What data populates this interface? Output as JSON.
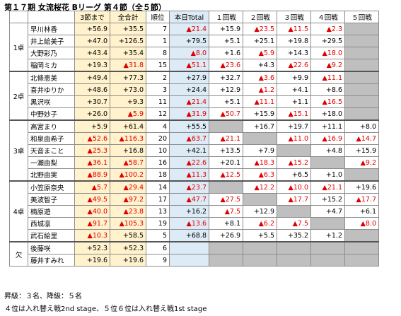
{
  "title": "第１７期 女流桜花 Bリーグ 第４節（全５節）",
  "headers": [
    "",
    "",
    "3節まで",
    "全合計",
    "順位",
    "本日Total",
    "１回戦",
    "２回戦",
    "３回戦",
    "４回戦",
    "５回戦"
  ],
  "groups": [
    {
      "label": "1卓",
      "rows": [
        {
          "name": "早川林香",
          "prev": "+56.9",
          "total": "+35.5",
          "rank": "7",
          "today": "▲21.4",
          "g": [
            "+15.9",
            "▲23.5",
            "▲11.5",
            "▲2.3",
            null
          ]
        },
        {
          "name": "井上絵美子",
          "prev": "+47.0",
          "total": "+126.5",
          "rank": "1",
          "today": "+79.5",
          "g": [
            "+5.1",
            "+25.1",
            "+19.8",
            "+29.5",
            null
          ]
        },
        {
          "name": "大野彩乃",
          "prev": "+43.4",
          "total": "+35.4",
          "rank": "8",
          "today": "▲8.0",
          "g": [
            "+1.6",
            "▲5.9",
            "+14.3",
            "▲18.0",
            null
          ]
        },
        {
          "name": "稲岡ミカ",
          "prev": "+19.3",
          "total": "▲31.8",
          "rank": "15",
          "today": "▲51.1",
          "g": [
            "▲23.6",
            "+4.3",
            "▲22.6",
            "▲9.2",
            null
          ]
        }
      ]
    },
    {
      "label": "2卓",
      "rows": [
        {
          "name": "北條恵美",
          "prev": "+49.4",
          "total": "+77.3",
          "rank": "2",
          "today": "+27.9",
          "g": [
            "+32.7",
            "▲3.6",
            "+9.9",
            "▲11.1",
            null
          ]
        },
        {
          "name": "喜井ゆりか",
          "prev": "+48.6",
          "total": "+73.0",
          "rank": "3",
          "today": "+24.4",
          "g": [
            "+12.9",
            "▲1.2",
            "+4.1",
            "+8.6",
            null
          ]
        },
        {
          "name": "黒沢咲",
          "prev": "+30.7",
          "total": "+9.3",
          "rank": "11",
          "today": "▲21.4",
          "g": [
            "+5.1",
            "▲11.1",
            "+1.1",
            "▲16.5",
            null
          ]
        },
        {
          "name": "中野妙子",
          "prev": "+26.0",
          "total": "▲5.9",
          "rank": "12",
          "today": "▲31.9",
          "g": [
            "▲50.7",
            "+15.9",
            "▲15.1",
            "+18.0",
            null
          ]
        }
      ]
    },
    {
      "label": "3卓",
      "rows": [
        {
          "name": "高宮まり",
          "prev": "+5.9",
          "total": "+61.4",
          "rank": "4",
          "today": "+55.5",
          "g": [
            null,
            "+16.7",
            "+19.7",
            "+11.1",
            "+8.0"
          ]
        },
        {
          "name": "和泉由希子",
          "prev": "▲52.6",
          "total": "▲116.3",
          "rank": "20",
          "today": "▲63.7",
          "g": [
            "▲21.1",
            null,
            "▲11.0",
            "▲16.9",
            "▲14.7"
          ]
        },
        {
          "name": "天音まこと",
          "prev": "▲25.3",
          "total": "+16.8",
          "rank": "10",
          "today": "+42.1",
          "g": [
            "+13.5",
            "+7.9",
            null,
            "+4.8",
            "+15.9"
          ]
        },
        {
          "name": "一瀬由梨",
          "prev": "▲36.1",
          "total": "▲58.7",
          "rank": "16",
          "today": "▲22.6",
          "g": [
            "+20.1",
            "▲18.3",
            "▲15.2",
            null,
            "▲9.2"
          ]
        },
        {
          "name": "北野由実",
          "prev": "▲88.9",
          "total": "▲100.2",
          "rank": "18",
          "today": "▲11.3",
          "g": [
            "▲12.5",
            "▲6.3",
            "+6.5",
            "+1.0",
            null
          ]
        }
      ]
    },
    {
      "label": "4卓",
      "rows": [
        {
          "name": "小笠原奈央",
          "prev": "▲5.7",
          "total": "▲29.4",
          "rank": "14",
          "today": "▲23.7",
          "g": [
            null,
            "▲12.2",
            "▲10.0",
            "▲21.1",
            "+19.6"
          ]
        },
        {
          "name": "美波智子",
          "prev": "▲49.5",
          "total": "▲97.2",
          "rank": "17",
          "today": "▲47.7",
          "g": [
            "▲27.5",
            null,
            "▲17.7",
            "+15.2",
            "▲17.7"
          ]
        },
        {
          "name": "楠原遊",
          "prev": "▲40.0",
          "total": "▲23.8",
          "rank": "13",
          "today": "+16.2",
          "g": [
            "▲7.5",
            "+12.9",
            null,
            "+4.7",
            "+6.1"
          ]
        },
        {
          "name": "西城凛",
          "prev": "▲91.7",
          "total": "▲105.3",
          "rank": "19",
          "today": "▲13.6",
          "g": [
            "+8.1",
            "▲6.2",
            "▲7.5",
            null,
            "▲8.0"
          ]
        },
        {
          "name": "武石絵里",
          "prev": "▲10.3",
          "total": "+58.5",
          "rank": "5",
          "today": "+68.8",
          "g": [
            "+26.9",
            "+5.5",
            "+35.2",
            "+1.2",
            null
          ]
        }
      ]
    },
    {
      "label": "欠",
      "rows": [
        {
          "name": "後藤咲",
          "prev": "+52.3",
          "total": "+52.3",
          "rank": "6",
          "today": "",
          "g": [
            null,
            null,
            null,
            null,
            null
          ]
        },
        {
          "name": "藤井すみれ",
          "prev": "+19.6",
          "total": "+19.6",
          "rank": "9",
          "today": "",
          "g": [
            null,
            null,
            null,
            null,
            null
          ]
        }
      ]
    }
  ],
  "footer": [
    "昇級：３名、降級：５名",
    "４位は入れ替え戦2nd stage、５位６位は入れ替え戦1st stage"
  ]
}
